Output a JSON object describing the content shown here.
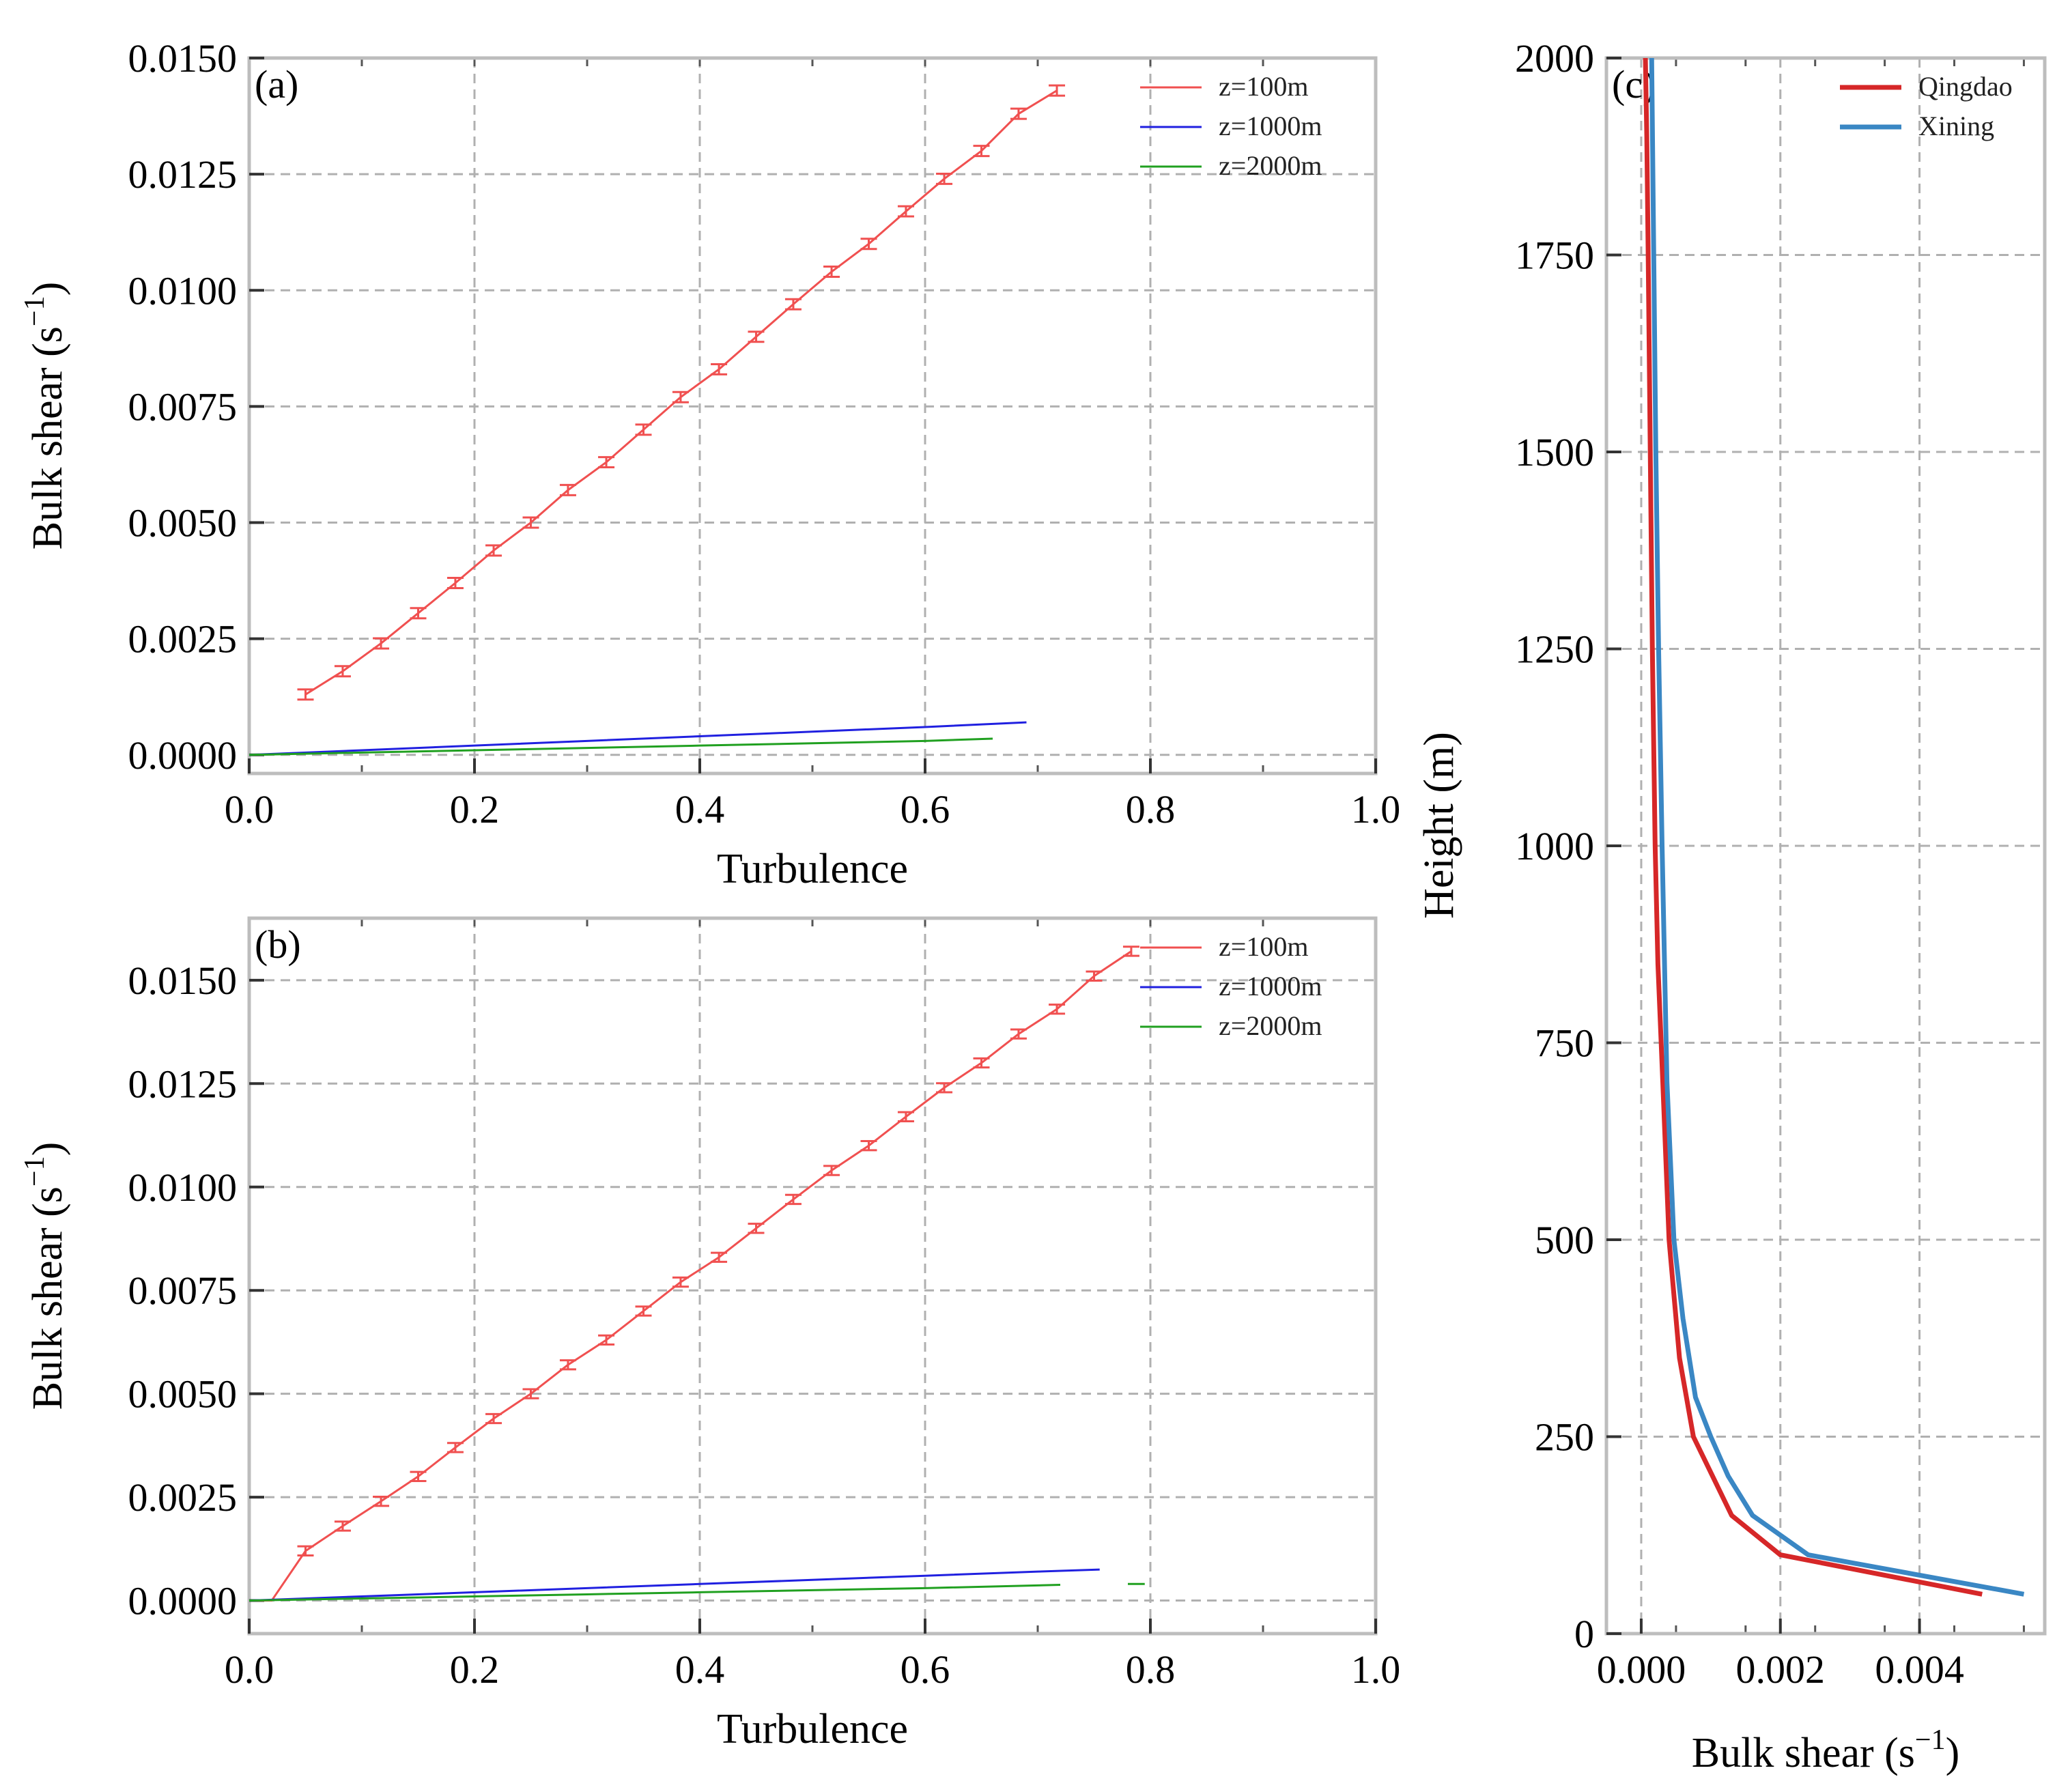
{
  "chart_data": [
    {
      "id": "a",
      "type": "line",
      "panel_label": "(a)",
      "xlabel": "Turbulence",
      "ylabel_main": "Bulk shear (s",
      "ylabel_sup": "−1",
      "ylabel_close": ")",
      "xlim": [
        0.0,
        1.0
      ],
      "ylim": [
        -0.0004,
        0.015
      ],
      "xticks": [
        0.0,
        0.2,
        0.4,
        0.6,
        0.8,
        1.0
      ],
      "xtick_labels": [
        "0.0",
        "0.2",
        "0.4",
        "0.6",
        "0.8",
        "1.0"
      ],
      "yticks": [
        0.0,
        0.0025,
        0.005,
        0.0075,
        0.01,
        0.0125,
        0.015
      ],
      "ytick_labels": [
        "0.0000",
        "0.0025",
        "0.0050",
        "0.0075",
        "0.0100",
        "0.0125",
        "0.0150"
      ],
      "legend_position": "top-right",
      "series": [
        {
          "name": "z=100m",
          "color": "#f05050",
          "error_bars": true,
          "error": 0.00011,
          "x": [
            0.05,
            0.083,
            0.117,
            0.15,
            0.183,
            0.217,
            0.25,
            0.283,
            0.317,
            0.35,
            0.383,
            0.417,
            0.45,
            0.483,
            0.517,
            0.55,
            0.583,
            0.617,
            0.65,
            0.683,
            0.717
          ],
          "y": [
            0.0013,
            0.0018,
            0.0024,
            0.00305,
            0.0037,
            0.0044,
            0.005,
            0.0057,
            0.0063,
            0.007,
            0.0077,
            0.0083,
            0.009,
            0.0097,
            0.0104,
            0.011,
            0.0117,
            0.0124,
            0.013,
            0.0138,
            0.0143
          ]
        },
        {
          "name": "z=1000m",
          "color": "#2020e0",
          "error_bars": false,
          "x": [
            0.0,
            0.1,
            0.2,
            0.3,
            0.4,
            0.5,
            0.6,
            0.69
          ],
          "y": [
            0.0,
            0.0001,
            0.0002,
            0.0003,
            0.0004,
            0.0005,
            0.0006,
            0.0007
          ]
        },
        {
          "name": "z=2000m",
          "color": "#20a020",
          "error_bars": false,
          "x": [
            0.0,
            0.1,
            0.2,
            0.3,
            0.4,
            0.5,
            0.6,
            0.66
          ],
          "y": [
            0.0,
            5e-05,
            0.0001,
            0.00015,
            0.0002,
            0.00025,
            0.0003,
            0.00035
          ]
        }
      ]
    },
    {
      "id": "b",
      "type": "line",
      "panel_label": "(b)",
      "xlabel": "Turbulence",
      "ylabel_main": "Bulk shear (s",
      "ylabel_sup": "−1",
      "ylabel_close": ")",
      "xlim": [
        0.0,
        1.0
      ],
      "ylim": [
        -0.0008,
        0.0165
      ],
      "xticks": [
        0.0,
        0.2,
        0.4,
        0.6,
        0.8,
        1.0
      ],
      "xtick_labels": [
        "0.0",
        "0.2",
        "0.4",
        "0.6",
        "0.8",
        "1.0"
      ],
      "yticks": [
        0.0,
        0.0025,
        0.005,
        0.0075,
        0.01,
        0.0125,
        0.015
      ],
      "ytick_labels": [
        "0.0000",
        "0.0025",
        "0.0050",
        "0.0075",
        "0.0100",
        "0.0125",
        "0.0150"
      ],
      "legend_position": "top-right",
      "series": [
        {
          "name": "z=100m",
          "color": "#f05050",
          "error_bars": true,
          "error": 0.00011,
          "x": [
            0.05,
            0.083,
            0.117,
            0.15,
            0.183,
            0.217,
            0.25,
            0.283,
            0.317,
            0.35,
            0.383,
            0.417,
            0.45,
            0.483,
            0.517,
            0.55,
            0.583,
            0.617,
            0.65,
            0.683,
            0.717,
            0.75,
            0.783
          ],
          "y": [
            0.0012,
            0.0018,
            0.0024,
            0.003,
            0.0037,
            0.0044,
            0.005,
            0.0057,
            0.0063,
            0.007,
            0.0077,
            0.0083,
            0.009,
            0.0097,
            0.0104,
            0.011,
            0.0117,
            0.0124,
            0.013,
            0.0137,
            0.0143,
            0.0151,
            0.0157
          ],
          "lead_in": {
            "x": [
              0.0,
              0.02
            ],
            "y": [
              0.0,
              0.0
            ]
          }
        },
        {
          "name": "z=1000m",
          "color": "#2020e0",
          "error_bars": false,
          "x": [
            0.0,
            0.1,
            0.2,
            0.3,
            0.4,
            0.5,
            0.6,
            0.7,
            0.755
          ],
          "y": [
            0.0,
            0.0001,
            0.0002,
            0.0003,
            0.0004,
            0.0005,
            0.0006,
            0.0007,
            0.00075
          ]
        },
        {
          "name": "z=2000m",
          "color": "#20a020",
          "error_bars": false,
          "x": [
            0.0,
            0.1,
            0.2,
            0.3,
            0.4,
            0.5,
            0.6,
            0.72
          ],
          "y": [
            0.0,
            5e-05,
            0.0001,
            0.00015,
            0.0002,
            0.00025,
            0.0003,
            0.00038
          ],
          "extra_segment": {
            "x": [
              0.78,
              0.795
            ],
            "y": [
              0.0004,
              0.0004
            ]
          }
        }
      ]
    },
    {
      "id": "c",
      "type": "line",
      "panel_label": "(c)",
      "xlabel_main": "Bulk shear (s",
      "xlabel_sup": "−1",
      "xlabel_close": ")",
      "ylabel": "Height (m)",
      "xlim": [
        -0.0005,
        0.0058
      ],
      "ylim": [
        0,
        2000
      ],
      "xticks": [
        0.0,
        0.002,
        0.004
      ],
      "xtick_labels": [
        "0.000",
        "0.002",
        "0.004"
      ],
      "yticks": [
        0,
        250,
        500,
        750,
        1000,
        1250,
        1500,
        1750,
        2000
      ],
      "ytick_labels": [
        "0",
        "250",
        "500",
        "750",
        "1000",
        "1250",
        "1500",
        "1750",
        "2000"
      ],
      "legend_position": "top-right",
      "series": [
        {
          "name": "Qingdao",
          "color": "#d62728",
          "x": [
            0.0049,
            0.002,
            0.0013,
            0.00075,
            0.00055,
            0.0004,
            0.00031,
            0.00024,
            0.0002,
            0.00016,
            0.00013,
            0.0001,
            8e-05,
            6e-05
          ],
          "y": [
            50,
            100,
            150,
            250,
            350,
            500,
            700,
            850,
            1000,
            1250,
            1500,
            1750,
            1900,
            2000
          ]
        },
        {
          "name": "Xining",
          "color": "#3a87c4",
          "x": [
            0.0055,
            0.0024,
            0.0016,
            0.00125,
            0.001,
            0.00078,
            0.0006,
            0.00047,
            0.00037,
            0.0003,
            0.00025,
            0.00021,
            0.00018,
            0.00015
          ],
          "y": [
            50,
            100,
            150,
            200,
            250,
            300,
            400,
            500,
            700,
            1000,
            1250,
            1500,
            1750,
            2000
          ]
        }
      ]
    }
  ]
}
